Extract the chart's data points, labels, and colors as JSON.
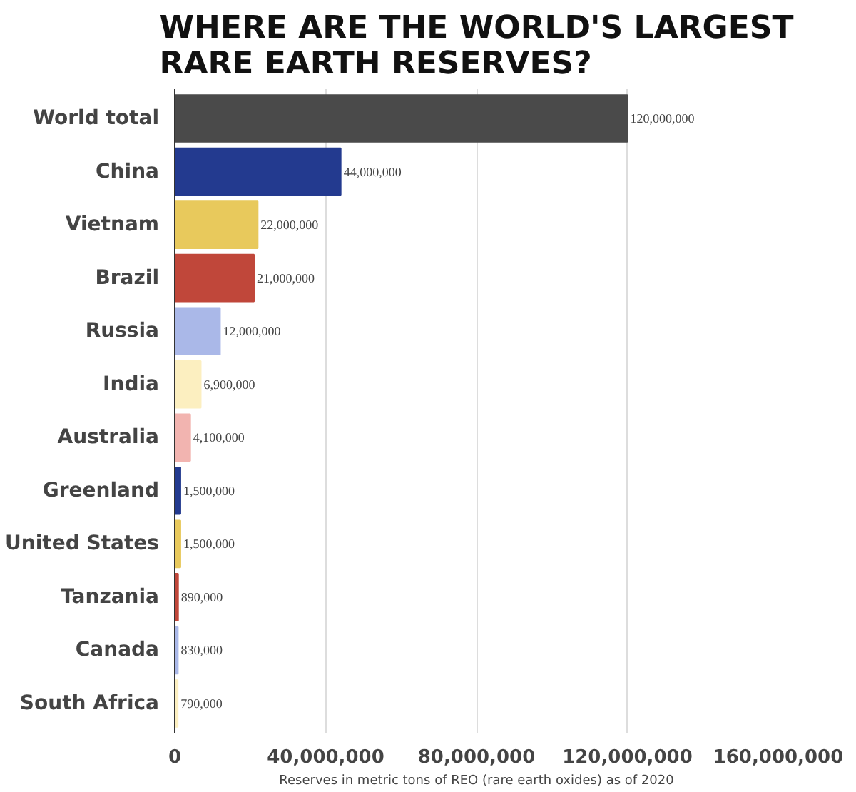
{
  "chart_data": {
    "type": "bar",
    "orientation": "horizontal",
    "title": "WHERE ARE THE WORLD'S LARGEST RARE EARTH RESERVES?",
    "xlabel": "Reserves in metric tons of REO (rare earth oxides) as of 2020",
    "categories": [
      "World total",
      "China",
      "Vietnam",
      "Brazil",
      "Russia",
      "India",
      "Australia",
      "Greenland",
      "United States",
      "Tanzania",
      "Canada",
      "South Africa"
    ],
    "values": [
      120000000,
      44000000,
      22000000,
      21000000,
      12000000,
      6900000,
      4100000,
      1500000,
      1500000,
      890000,
      830000,
      790000
    ],
    "colors": [
      "#4a4a4a",
      "#233a8f",
      "#e8c95c",
      "#c0473a",
      "#aab8e8",
      "#fcefc0",
      "#f2b4b0",
      "#233a8f",
      "#e8c95c",
      "#c0473a",
      "#aab8e8",
      "#fcefc0"
    ],
    "value_labels": [
      "120,000,000",
      "44,000,000",
      "22,000,000",
      "21,000,000",
      "12,000,000",
      "6,900,000",
      "4,100,000",
      "1,500,000",
      "1,500,000",
      "890,000",
      "830,000",
      "790,000"
    ],
    "xlim": [
      0,
      160000000
    ],
    "xticks": [
      0,
      {
        "value": 40000000,
        "label": "40,000,000"
      },
      {
        "value": 80000000,
        "label": "80,000,000"
      },
      {
        "value": 120000000,
        "label": "120,000,000"
      },
      {
        "value": 160000000,
        "label": "160,000,000"
      }
    ],
    "grid": "x"
  }
}
